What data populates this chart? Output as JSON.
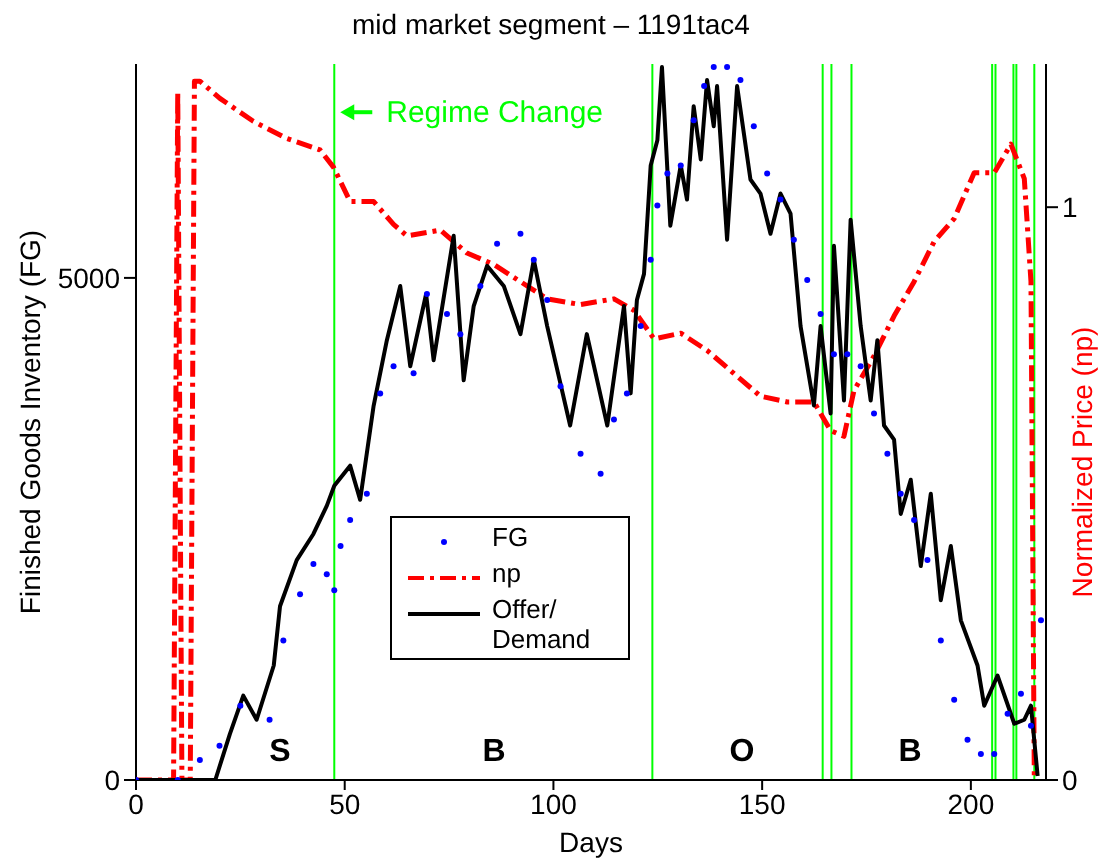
{
  "chart_data": {
    "type": "line",
    "title": "mid market segment – 1191tac4",
    "xlabel": "Days",
    "ylabel": "Finished Goods Inventory (FG)",
    "y2label": "Normalized Price (np)",
    "xlim": [
      0,
      218
    ],
    "xticks": [
      0,
      50,
      100,
      150,
      200
    ],
    "ylim": [
      0,
      7130
    ],
    "yticks": [
      0,
      5000
    ],
    "y2lim": [
      0,
      1.25
    ],
    "y2ticks": [
      0,
      1
    ],
    "grid": false,
    "legend": "bottom left",
    "series": [
      {
        "name": "FG",
        "type": "scatter",
        "marker": "circle",
        "color": "#0000ff",
        "x": [
          0,
          10,
          15.3,
          20,
          25,
          32,
          35.3,
          39.3,
          42.5,
          45.7,
          47.5,
          49,
          51.3,
          55.3,
          58.5,
          61.7,
          66.5,
          69.7,
          74.5,
          77.7,
          82.5,
          86.5,
          92.1,
          95.3,
          98.5,
          101.7,
          106.5,
          111.3,
          114.5,
          117.6,
          120.9,
          123.3,
          124.9,
          127.3,
          130.5,
          133.6,
          136.1,
          138.4,
          141.6,
          144.8,
          148,
          151.2,
          154.4,
          157.6,
          160.8,
          164,
          167.2,
          170.4,
          173.6,
          176.8,
          180,
          183.2,
          186.4,
          189.6,
          192.8,
          196,
          199.2,
          202.4,
          205.6,
          208.8,
          212,
          214.4,
          216.8
        ],
        "values": [
          0,
          0,
          200,
          340,
          740,
          600,
          1390,
          1850,
          2150,
          2050,
          1890,
          2330,
          2590,
          2850,
          3850,
          4120,
          4050,
          4840,
          4640,
          4440,
          4920,
          5340,
          5440,
          5180,
          4780,
          3920,
          3250,
          3050,
          3590,
          3850,
          4520,
          5180,
          5720,
          6040,
          6120,
          6570,
          6910,
          7100,
          7100,
          6970,
          6510,
          6040,
          5780,
          5380,
          4980,
          4640,
          4240,
          4240,
          4120,
          3650,
          3250,
          2850,
          2590,
          2190,
          1390,
          800,
          400,
          260,
          260,
          660,
          860,
          540,
          1590
        ]
      },
      {
        "name": "np",
        "axis": "y2",
        "line_style": "dashed",
        "color": "#ff0000",
        "x": [
          0,
          9,
          10,
          11,
          13,
          14,
          15.3,
          20.1,
          28.1,
          36.1,
          44.1,
          47.3,
          51.3,
          56.9,
          61.7,
          64.9,
          72.9,
          79.3,
          85.7,
          92.1,
          98.5,
          106.5,
          114.5,
          119.3,
          124.1,
          130.5,
          136.8,
          143.2,
          149.6,
          156,
          162.4,
          166.4,
          169.6,
          172,
          176.8,
          181.6,
          186.4,
          191.2,
          196,
          200.8,
          205.6,
          209.6,
          212.8,
          214.4,
          215.2
        ],
        "values": [
          0,
          0,
          1.2,
          0,
          0,
          1.22,
          1.22,
          1.19,
          1.15,
          1.12,
          1.1,
          1.07,
          1.01,
          1.01,
          0.97,
          0.95,
          0.96,
          0.92,
          0.9,
          0.87,
          0.84,
          0.83,
          0.84,
          0.82,
          0.77,
          0.78,
          0.75,
          0.71,
          0.67,
          0.66,
          0.66,
          0.61,
          0.6,
          0.68,
          0.74,
          0.81,
          0.87,
          0.94,
          0.98,
          1.06,
          1.06,
          1.11,
          1.05,
          0.87,
          0
        ]
      },
      {
        "name": "Offer/Demand",
        "line_style": "solid",
        "color": "#000000",
        "x": [
          0,
          12,
          19,
          22.5,
          25.7,
          28.9,
          33,
          34.5,
          38.5,
          42.5,
          45.7,
          47.5,
          51.3,
          53.7,
          56.9,
          60.1,
          63.3,
          65.7,
          69.5,
          71.3,
          76.1,
          78.5,
          80.9,
          84.1,
          88.1,
          92.1,
          95.3,
          98.5,
          104,
          108,
          112.9,
          116.9,
          118.5,
          120,
          121.7,
          123.3,
          124.9,
          126,
          128,
          130.5,
          132,
          133.6,
          135.3,
          136.8,
          138.4,
          139.2,
          141.6,
          144,
          147.2,
          149.6,
          152,
          154.4,
          156.8,
          159.2,
          162.4,
          164,
          166.4,
          167.2,
          169.6,
          171.2,
          173.6,
          176,
          177.6,
          179.2,
          181.6,
          183.2,
          185.6,
          188,
          190.4,
          192.8,
          195.2,
          197.6,
          201.6,
          203.2,
          206.4,
          210.4,
          212.8,
          214.4,
          216
        ],
        "values": [
          0,
          0,
          0,
          460,
          840,
          600,
          1140,
          1730,
          2190,
          2450,
          2730,
          2930,
          3130,
          2790,
          3720,
          4380,
          4920,
          4120,
          4840,
          4180,
          5420,
          3980,
          4720,
          5120,
          4920,
          4440,
          5180,
          4520,
          3530,
          4440,
          3530,
          4720,
          3850,
          4780,
          5040,
          6120,
          6370,
          7100,
          5520,
          6120,
          5780,
          6710,
          6180,
          6970,
          6510,
          6910,
          5380,
          6910,
          5980,
          5840,
          5440,
          5840,
          5640,
          4520,
          3730,
          4520,
          3650,
          5320,
          3780,
          5580,
          4520,
          3780,
          4380,
          3530,
          3390,
          2650,
          2990,
          2130,
          2850,
          1790,
          2330,
          1590,
          1140,
          740,
          1040,
          560,
          600,
          740,
          40
        ]
      }
    ],
    "ref_lines": [
      {
        "axis": "x",
        "value": 47.5,
        "color": "#00ff00"
      },
      {
        "axis": "x",
        "value": 123.7,
        "color": "#00ff00"
      },
      {
        "axis": "x",
        "value": 164.5,
        "color": "#00ff00"
      },
      {
        "axis": "x",
        "value": 166.6,
        "color": "#00ff00"
      },
      {
        "axis": "x",
        "value": 171.4,
        "color": "#00ff00"
      },
      {
        "axis": "x",
        "value": 205.1,
        "color": "#00ff00"
      },
      {
        "axis": "x",
        "value": 205.9,
        "color": "#00ff00"
      },
      {
        "axis": "x",
        "value": 210.2,
        "color": "#00ff00"
      },
      {
        "axis": "x",
        "value": 210.9,
        "color": "#00ff00"
      },
      {
        "axis": "x",
        "value": 215.2,
        "color": "#00ff00"
      }
    ],
    "annotations": [
      {
        "text": "Regime Change",
        "x": 47.5,
        "y": 6650
      },
      "S",
      "B",
      "O",
      "B"
    ]
  }
}
